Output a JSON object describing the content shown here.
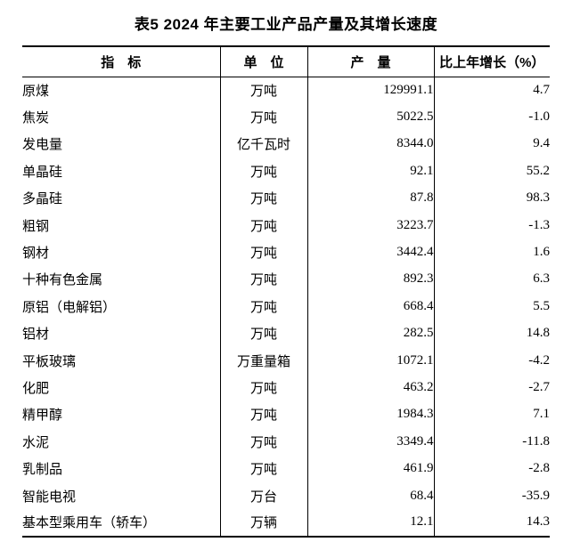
{
  "page": {
    "background_color": "#ffffff",
    "text_color": "#000000"
  },
  "title": "表5 2024 年主要工业产品产量及其增长速度",
  "table": {
    "headers": {
      "indicator": "指　标",
      "unit": "单　位",
      "output": "产　量",
      "growth": "比上年增长（%）"
    },
    "rows": [
      {
        "indicator": "原煤",
        "unit": "万吨",
        "output": "129991.1",
        "growth": "4.7"
      },
      {
        "indicator": "焦炭",
        "unit": "万吨",
        "output": "5022.5",
        "growth": "-1.0"
      },
      {
        "indicator": "发电量",
        "unit": "亿千瓦时",
        "output": "8344.0",
        "growth": "9.4"
      },
      {
        "indicator": "单晶硅",
        "unit": "万吨",
        "output": "92.1",
        "growth": "55.2"
      },
      {
        "indicator": "多晶硅",
        "unit": "万吨",
        "output": "87.8",
        "growth": "98.3"
      },
      {
        "indicator": "粗钢",
        "unit": "万吨",
        "output": "3223.7",
        "growth": "-1.3"
      },
      {
        "indicator": "钢材",
        "unit": "万吨",
        "output": "3442.4",
        "growth": "1.6"
      },
      {
        "indicator": "十种有色金属",
        "unit": "万吨",
        "output": "892.3",
        "growth": "6.3"
      },
      {
        "indicator": "原铝（电解铝）",
        "unit": "万吨",
        "output": "668.4",
        "growth": "5.5"
      },
      {
        "indicator": "铝材",
        "unit": "万吨",
        "output": "282.5",
        "growth": "14.8"
      },
      {
        "indicator": "平板玻璃",
        "unit": "万重量箱",
        "output": "1072.1",
        "growth": "-4.2"
      },
      {
        "indicator": "化肥",
        "unit": "万吨",
        "output": "463.2",
        "growth": "-2.7"
      },
      {
        "indicator": "精甲醇",
        "unit": "万吨",
        "output": "1984.3",
        "growth": "7.1"
      },
      {
        "indicator": "水泥",
        "unit": "万吨",
        "output": "3349.4",
        "growth": "-11.8"
      },
      {
        "indicator": "乳制品",
        "unit": "万吨",
        "output": "461.9",
        "growth": "-2.8"
      },
      {
        "indicator": "智能电视",
        "unit": "万台",
        "output": "68.4",
        "growth": "-35.9"
      },
      {
        "indicator": "基本型乘用车（轿车）",
        "unit": "万辆",
        "output": "12.1",
        "growth": "14.3"
      }
    ]
  }
}
